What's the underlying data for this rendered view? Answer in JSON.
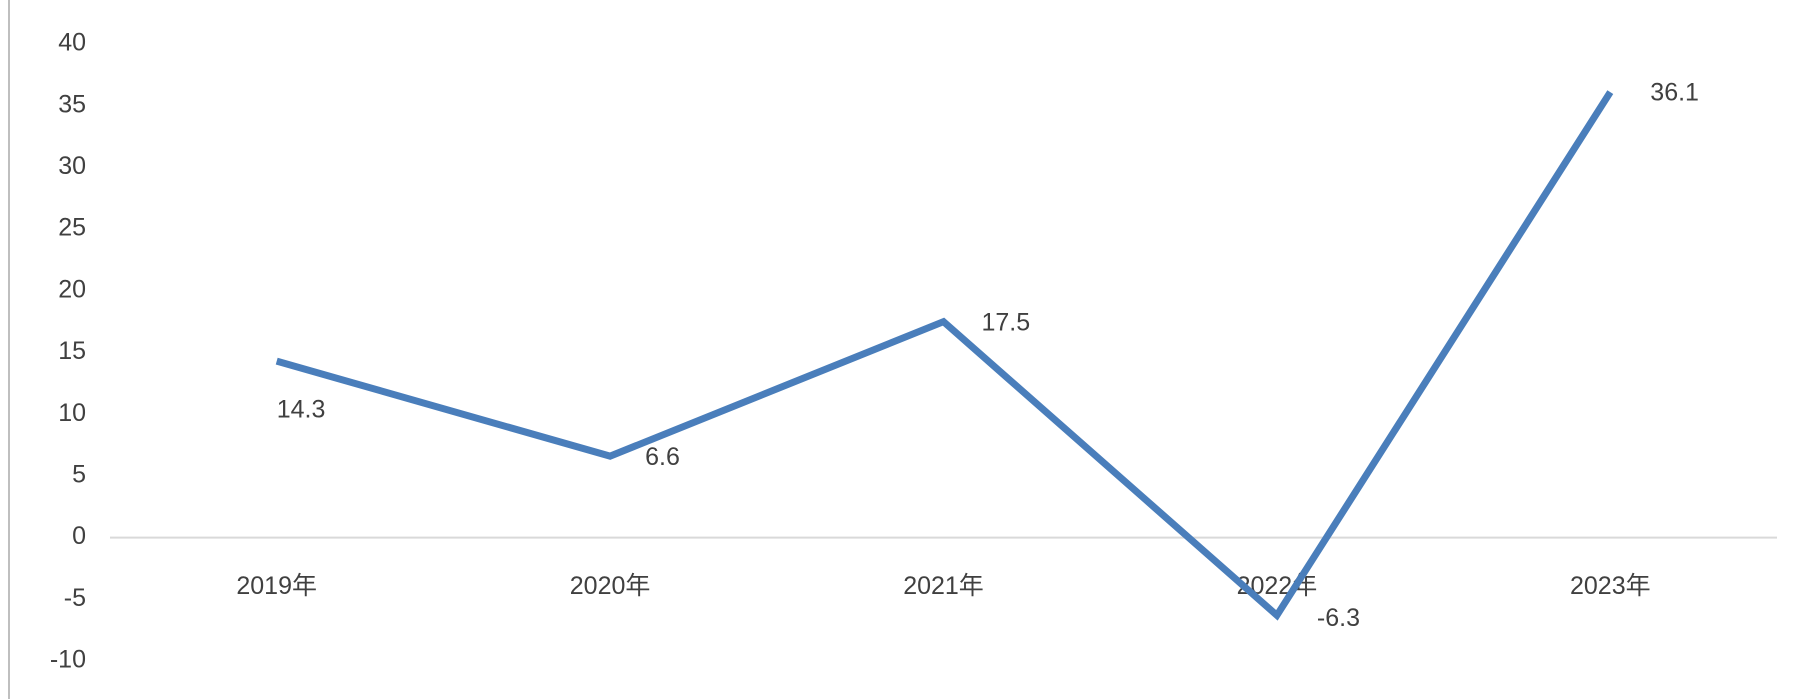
{
  "chart_data": {
    "type": "line",
    "categories": [
      "2019年",
      "2020年",
      "2021年",
      "2022年",
      "2023年"
    ],
    "values": [
      14.3,
      6.6,
      17.5,
      -6.3,
      36.1
    ],
    "color": "#4a7ebb",
    "ylim": [
      -10,
      40
    ],
    "yticks": [
      -10,
      -5,
      0,
      5,
      10,
      15,
      20,
      25,
      30,
      35,
      40
    ],
    "grid": false
  }
}
